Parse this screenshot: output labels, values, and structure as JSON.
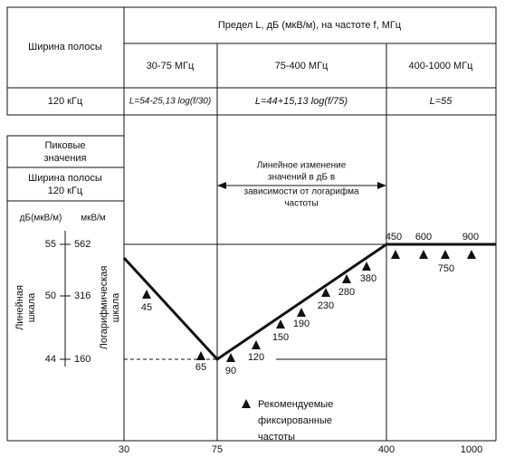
{
  "header": {
    "band_label": "Ширина полосы",
    "limit_title": "Предел L, дБ (мкВ/м), на частоте f, МГц"
  },
  "ranges": [
    "30-75 МГц",
    "75-400 МГц",
    "400-1000 МГц"
  ],
  "band_value": "120 кГц",
  "formulas": [
    "L=54-25,13 log(f/30)",
    "L=44+15,13 log(f/75)",
    "L=55"
  ],
  "left_panel": {
    "peak": [
      "Пиковые",
      "значения"
    ],
    "band": [
      "Ширина полосы",
      "120 кГц"
    ]
  },
  "scale": {
    "unit_db": "дБ(мкВ/м)",
    "unit_uv": "мкВ/м",
    "db_ticks": [
      "55",
      "50",
      "44"
    ],
    "uv_ticks": [
      "562",
      "316",
      "160"
    ],
    "linear": [
      "Линейная",
      "шкала"
    ],
    "log": [
      "Логарифмическая",
      "шкала"
    ]
  },
  "annotation": [
    "Линейное изменение",
    "значений в дБ в",
    "зависимости от логарифма",
    "частоты"
  ],
  "x_labels": [
    "30",
    "75",
    "400",
    "1000"
  ],
  "markers": [
    "45",
    "65",
    "90",
    "120",
    "150",
    "190",
    "230",
    "280",
    "380",
    "450",
    "600",
    "750",
    "900"
  ],
  "legend": [
    "Рекомендуемые",
    "фиксированные",
    "частоты"
  ]
}
